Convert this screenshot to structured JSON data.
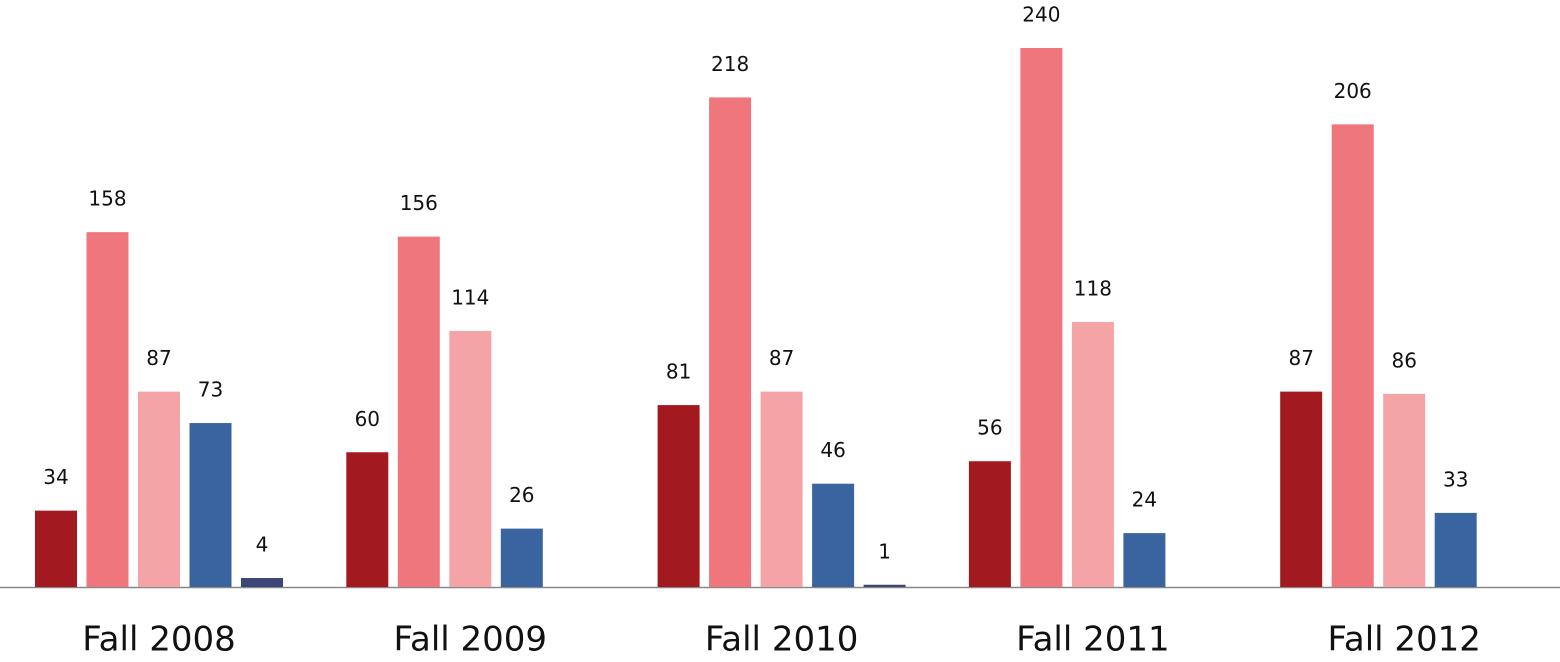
{
  "chart_data": {
    "type": "bar",
    "categories": [
      "Fall 2008",
      "Fall 2009",
      "Fall 2010",
      "Fall 2011",
      "Fall 2012"
    ],
    "series": [
      {
        "color": "#a31920",
        "values": [
          34,
          60,
          81,
          56,
          87
        ]
      },
      {
        "color": "#ee767c",
        "values": [
          158,
          156,
          218,
          240,
          206
        ]
      },
      {
        "color": "#f4a4a6",
        "values": [
          87,
          114,
          87,
          118,
          86
        ]
      },
      {
        "color": "#3a64a0",
        "values": [
          73,
          26,
          46,
          24,
          33
        ]
      },
      {
        "color": "#3d4678",
        "values": [
          4,
          null,
          1,
          null,
          null
        ]
      }
    ]
  }
}
